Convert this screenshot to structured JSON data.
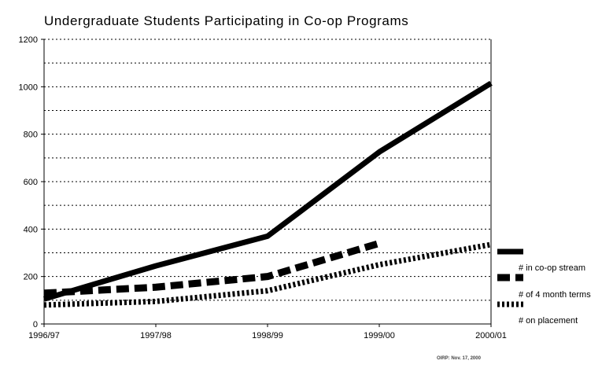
{
  "chart_data": {
    "type": "line",
    "title": "Undergraduate Students Participating in Co-op Programs",
    "categories": [
      "1996/97",
      "1997/98",
      "1998/99",
      "1999/00",
      "2000/01"
    ],
    "yticks": [
      0,
      200,
      400,
      600,
      800,
      1000,
      1200
    ],
    "ylim": [
      0,
      1200
    ],
    "grid": true,
    "legend_position": "bottom-right",
    "series": [
      {
        "name": "# in co-op stream",
        "style": "solid",
        "values": [
          105,
          245,
          370,
          725,
          1015
        ]
      },
      {
        "name": "# of 4 month terms",
        "style": "dashed",
        "values": [
          130,
          155,
          200,
          340,
          null
        ]
      },
      {
        "name": "# on placement",
        "style": "dotted",
        "values": [
          80,
          95,
          140,
          250,
          335
        ]
      }
    ]
  },
  "credit": "OIRP: Nov. 17, 2000",
  "colors": {
    "line": "#000000",
    "grid": "#000000",
    "background": "#ffffff"
  }
}
